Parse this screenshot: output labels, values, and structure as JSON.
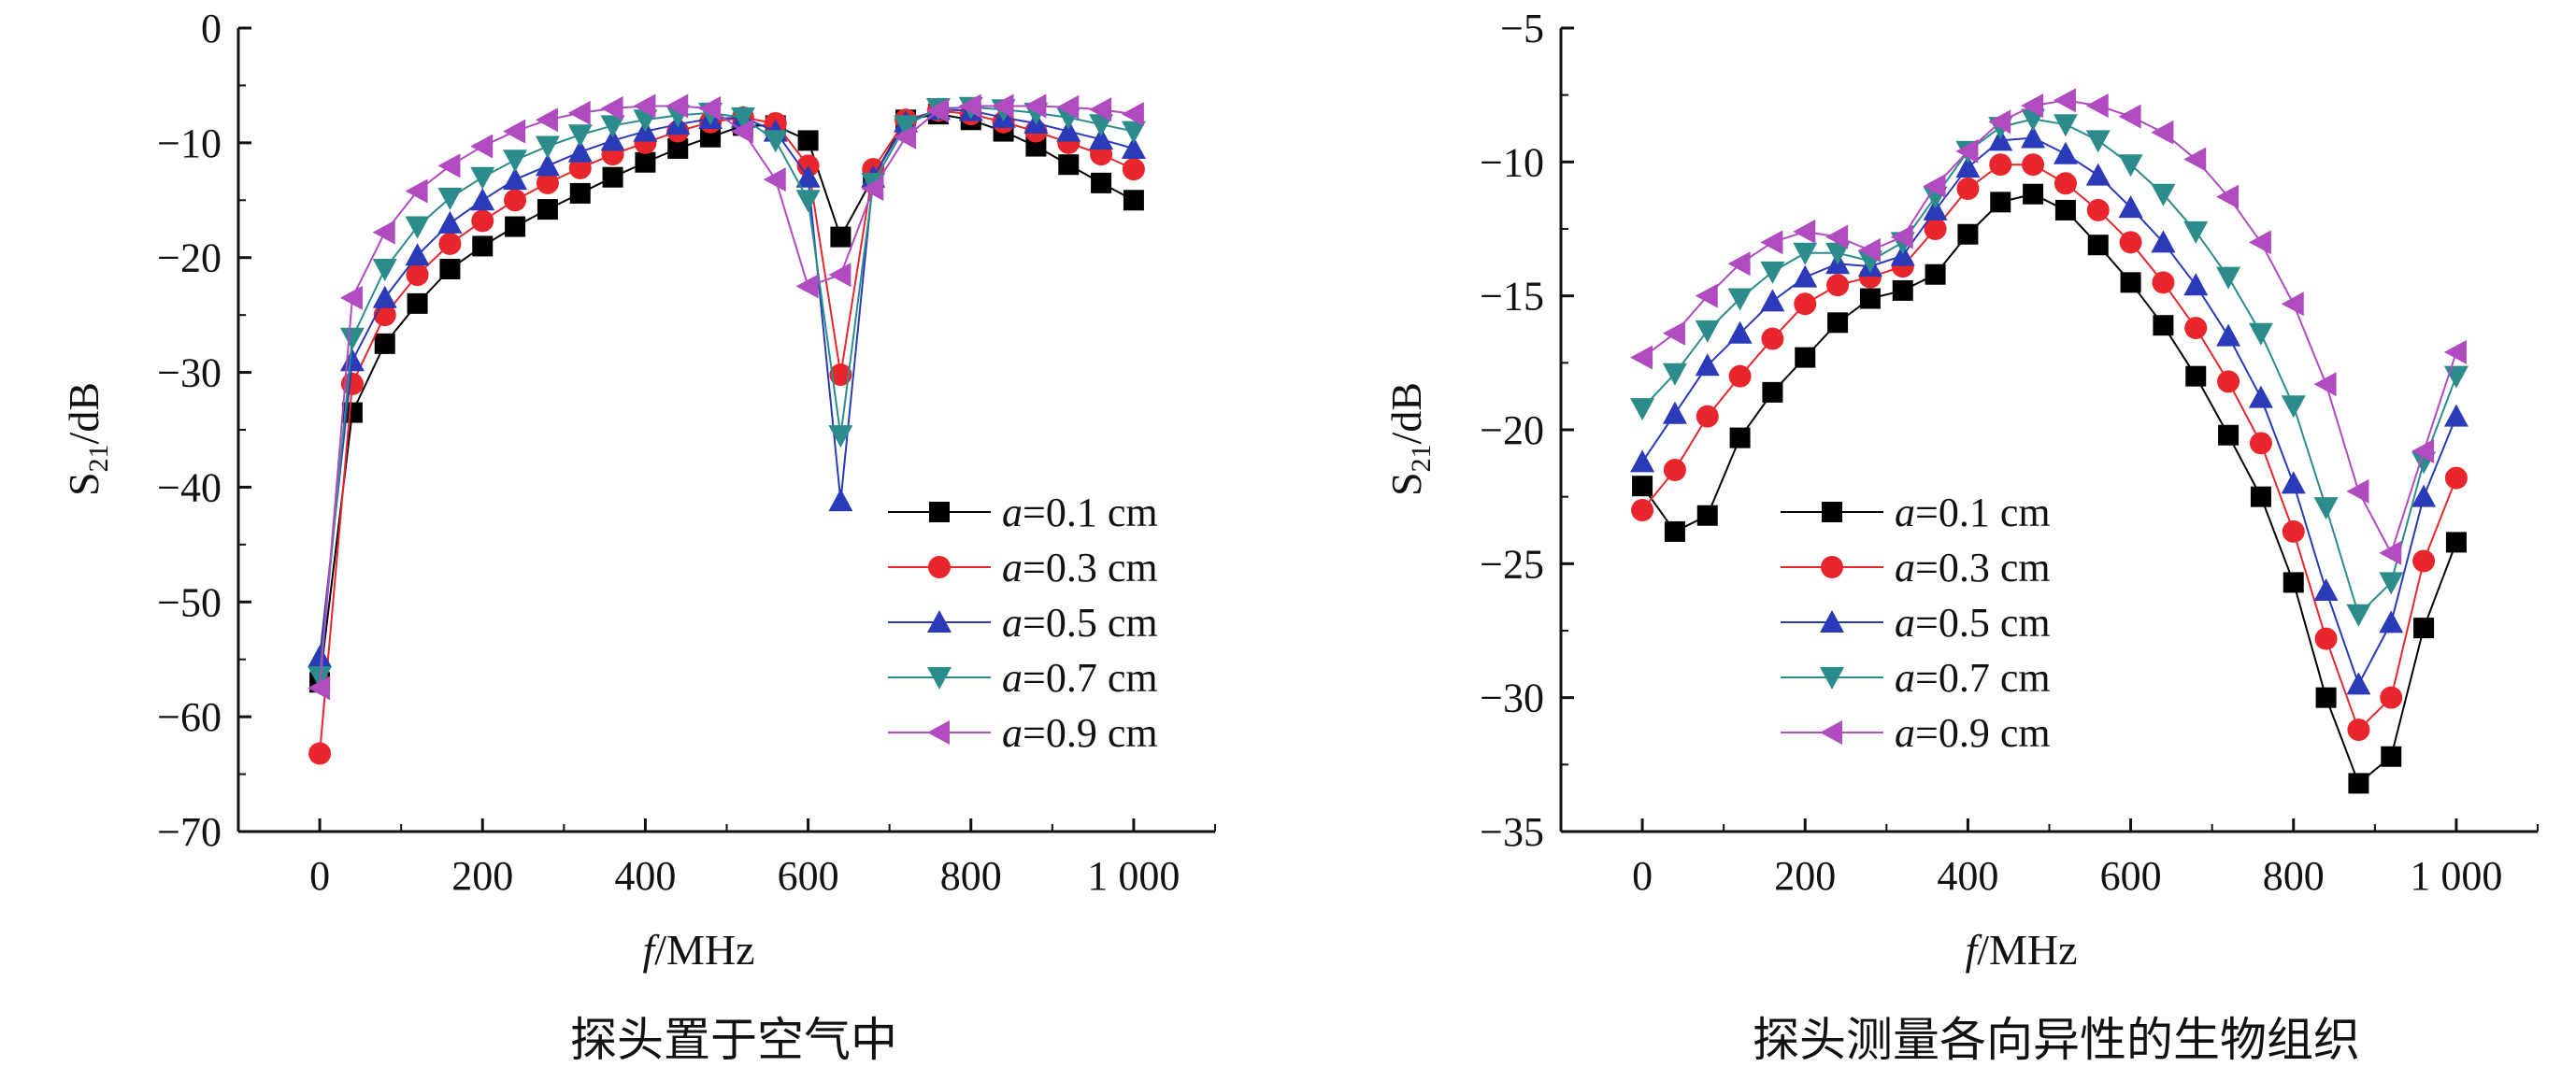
{
  "chart_data": [
    {
      "type": "line",
      "caption": "探头置于空气中",
      "xlabel": "f/MHz",
      "ylabel": "S21/dB",
      "xlim": [
        -100,
        1100
      ],
      "ylim": [
        -70,
        0
      ],
      "xticks": [
        0,
        200,
        400,
        600,
        800,
        1000
      ],
      "xtick_labels": [
        "0",
        "200",
        "400",
        "600",
        "800",
        "1 000"
      ],
      "yticks": [
        0,
        -10,
        -20,
        -30,
        -40,
        -50,
        -60,
        -70
      ],
      "ytick_labels": [
        "0",
        "−10",
        "−20",
        "−30",
        "−40",
        "−50",
        "−60",
        "−70"
      ],
      "legend_position": "lower-right",
      "x": [
        0,
        40,
        80,
        120,
        160,
        200,
        240,
        280,
        320,
        360,
        400,
        440,
        480,
        520,
        560,
        600,
        640,
        680,
        720,
        760,
        800,
        840,
        880,
        920,
        960,
        1000
      ],
      "series": [
        {
          "name": "a=0.1 cm",
          "marker": "square",
          "color": "#000000",
          "values": [
            -57,
            -33.5,
            -27.5,
            -24,
            -21,
            -19,
            -17.3,
            -15.8,
            -14.4,
            -13,
            -11.7,
            -10.5,
            -9.5,
            -8.5,
            -8.5,
            -9.8,
            -18.2,
            -13,
            -8,
            -7.5,
            -8,
            -9,
            -10.3,
            -11.9,
            -13.5,
            -15
          ]
        },
        {
          "name": "a=0.3 cm",
          "marker": "circle",
          "color": "#e8262b",
          "values": [
            -63.2,
            -31,
            -25,
            -21.5,
            -18.8,
            -16.8,
            -15,
            -13.5,
            -12.2,
            -11,
            -10,
            -9,
            -8.2,
            -7.8,
            -8.3,
            -12,
            -30.2,
            -12.3,
            -8,
            -7.2,
            -7.5,
            -8.2,
            -9,
            -10,
            -11,
            -12.3
          ]
        },
        {
          "name": "a=0.5 cm",
          "marker": "triangle-up",
          "color": "#2a3ab8",
          "values": [
            -54.8,
            -29,
            -23.5,
            -19.8,
            -17,
            -15,
            -13.2,
            -12,
            -10.8,
            -9.8,
            -9,
            -8.4,
            -7.9,
            -7.8,
            -9,
            -13,
            -41.2,
            -13,
            -8.2,
            -7.1,
            -7.2,
            -7.8,
            -8.3,
            -9,
            -9.7,
            -10.5
          ]
        },
        {
          "name": "a=0.7 cm",
          "marker": "triangle-down",
          "color": "#2c8c8c",
          "values": [
            -56.5,
            -27,
            -21,
            -17.3,
            -14.8,
            -13,
            -11.5,
            -10.3,
            -9.3,
            -8.5,
            -8,
            -7.6,
            -7.4,
            -7.8,
            -9.8,
            -15,
            -35.5,
            -13.5,
            -8.5,
            -7,
            -6.9,
            -7.1,
            -7.4,
            -7.8,
            -8.4,
            -9
          ]
        },
        {
          "name": "a=0.9 cm",
          "marker": "triangle-left",
          "color": "#b04bc0",
          "values": [
            -57.5,
            -23.5,
            -17.8,
            -14.2,
            -12,
            -10.3,
            -9,
            -8,
            -7.4,
            -7,
            -6.8,
            -6.8,
            -7,
            -9,
            -13.2,
            -22.5,
            -21.5,
            -14,
            -9.5,
            -7.2,
            -6.8,
            -6.8,
            -6.8,
            -6.9,
            -7.1,
            -7.5
          ]
        }
      ]
    },
    {
      "type": "line",
      "caption": "探头测量各向异性的生物组织",
      "xlabel": "f/MHz",
      "ylabel": "S21/dB",
      "xlim": [
        -100,
        1100
      ],
      "ylim": [
        -35,
        -5
      ],
      "xticks": [
        0,
        200,
        400,
        600,
        800,
        1000
      ],
      "xtick_labels": [
        "0",
        "200",
        "400",
        "600",
        "800",
        "1 000"
      ],
      "yticks": [
        -5,
        -10,
        -15,
        -20,
        -25,
        -30,
        -35
      ],
      "ytick_labels": [
        "−5",
        "−10",
        "−15",
        "−20",
        "−25",
        "−30",
        "−35"
      ],
      "legend_position": "lower-left",
      "x": [
        0,
        40,
        80,
        120,
        160,
        200,
        240,
        280,
        320,
        360,
        400,
        440,
        480,
        520,
        560,
        600,
        640,
        680,
        720,
        760,
        800,
        840,
        880,
        920,
        960,
        1000
      ],
      "series": [
        {
          "name": "a=0.1 cm",
          "marker": "square",
          "color": "#000000",
          "values": [
            -22.1,
            -23.8,
            -23.2,
            -20.3,
            -18.6,
            -17.3,
            -16,
            -15.1,
            -14.8,
            -14.2,
            -12.7,
            -11.5,
            -11.2,
            -11.8,
            -13.1,
            -14.5,
            -16.1,
            -18,
            -20.2,
            -22.5,
            -25.7,
            -30,
            -33.2,
            -32.2,
            -27.4,
            -24.2
          ]
        },
        {
          "name": "a=0.3 cm",
          "marker": "circle",
          "color": "#e8262b",
          "values": [
            -23,
            -21.5,
            -19.5,
            -18,
            -16.6,
            -15.3,
            -14.6,
            -14.3,
            -13.9,
            -12.5,
            -11,
            -10.1,
            -10.1,
            -10.8,
            -11.8,
            -13,
            -14.5,
            -16.2,
            -18.2,
            -20.5,
            -23.8,
            -27.8,
            -31.2,
            -30,
            -24.9,
            -21.8
          ]
        },
        {
          "name": "a=0.5 cm",
          "marker": "triangle-up",
          "color": "#2a3ab8",
          "values": [
            -21.2,
            -19.4,
            -17.6,
            -16.4,
            -15.2,
            -14.3,
            -13.8,
            -13.9,
            -13.5,
            -11.8,
            -10.2,
            -9.2,
            -9.1,
            -9.7,
            -10.5,
            -11.7,
            -13,
            -14.6,
            -16.5,
            -18.8,
            -22,
            -26,
            -29.5,
            -27.2,
            -22.5,
            -19.5
          ]
        },
        {
          "name": "a=0.7 cm",
          "marker": "triangle-down",
          "color": "#2c8c8c",
          "values": [
            -19.2,
            -17.9,
            -16.3,
            -15.1,
            -14.1,
            -13.4,
            -13.4,
            -13.7,
            -13,
            -11.3,
            -9.6,
            -8.7,
            -8.4,
            -8.6,
            -9.2,
            -10.1,
            -11.2,
            -12.6,
            -14.3,
            -16.4,
            -19.1,
            -22.9,
            -26.9,
            -25.7,
            -21.2,
            -18
          ]
        },
        {
          "name": "a=0.9 cm",
          "marker": "triangle-left",
          "color": "#b04bc0",
          "values": [
            -17.3,
            -16.4,
            -15,
            -13.8,
            -13,
            -12.6,
            -12.8,
            -13.3,
            -12.8,
            -10.9,
            -9.6,
            -8.5,
            -7.9,
            -7.7,
            -7.9,
            -8.3,
            -8.9,
            -9.9,
            -11.3,
            -13,
            -15.3,
            -18.3,
            -22.3,
            -24.6,
            -20.8,
            -17.1
          ]
        }
      ]
    }
  ]
}
